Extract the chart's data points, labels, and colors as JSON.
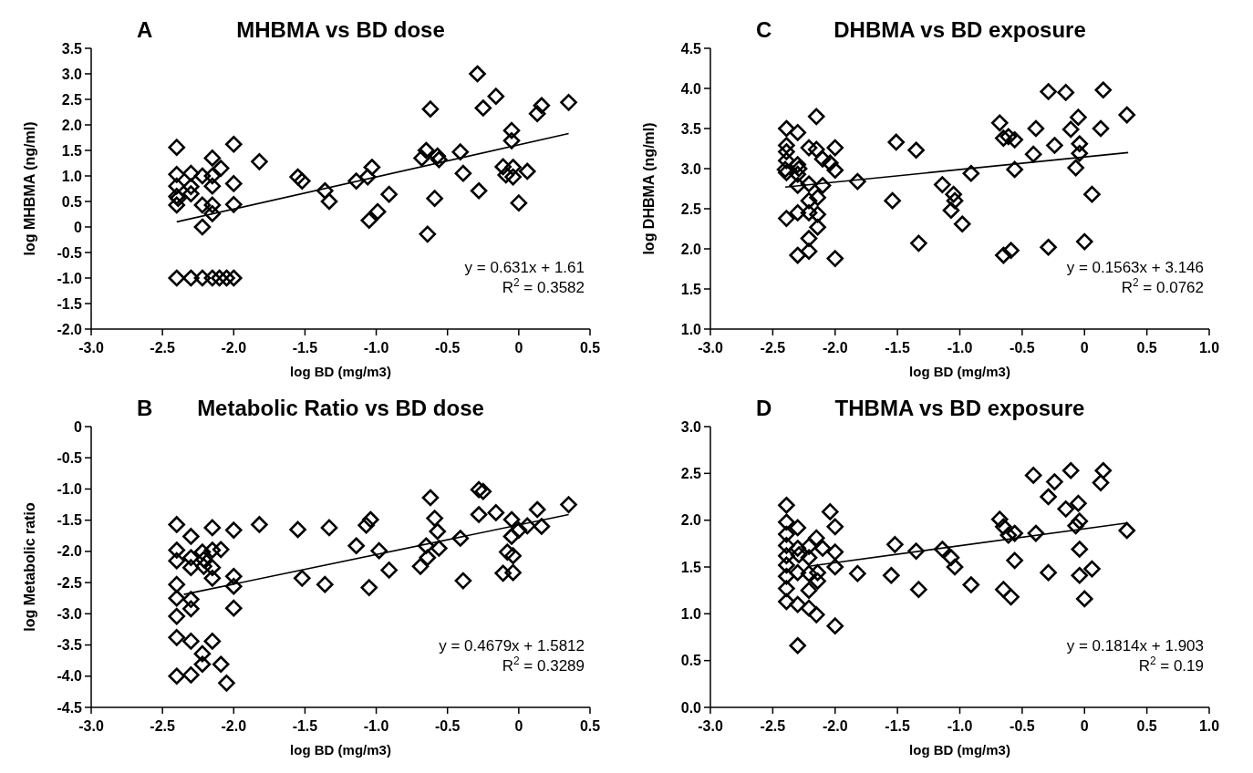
{
  "chart_data": [
    {
      "type": "scatter",
      "title": "MHBMA vs BD dose",
      "xlabel": "log BD (mg/m3)",
      "ylabel": "log MHBMA (ng/ml)",
      "annotations": [
        "A",
        "y = 0.631x + 1.61",
        "R$^{2}$ = 0.3582"
      ],
      "xlim": [
        -3.0,
        0.5
      ],
      "xticks": [
        {
          "value": -3,
          "label": "-3.0"
        },
        {
          "value": -2.5,
          "label": "-2.5"
        },
        {
          "value": -2,
          "label": "-2.0"
        },
        {
          "value": -1.5,
          "label": "-1.5"
        },
        {
          "value": -1,
          "label": "-1.0"
        },
        {
          "value": -0.5,
          "label": "-0.5"
        },
        {
          "value": 0,
          "label": "0"
        },
        {
          "value": 0.5,
          "label": "0.5"
        }
      ],
      "ylim": [
        -2.0,
        3.5
      ],
      "yticks": [
        {
          "value": -2,
          "label": "-2.0"
        },
        {
          "value": -1.5,
          "label": "-1.5"
        },
        {
          "value": -1,
          "label": "-1.0"
        },
        -0.5,
        0,
        0.5,
        {
          "value": 1,
          "label": "1.0"
        },
        1.5,
        {
          "value": 2,
          "label": "2.0"
        },
        2.5,
        {
          "value": 3,
          "label": "3.0"
        },
        3.5
      ],
      "series": [
        {
          "type": "scatter",
          "marker": "diamond",
          "color": "#000000",
          "x": [
            -2.4,
            -2.4,
            -2.4,
            -2.4,
            -2.4,
            -2.39,
            -2.3,
            -2.3,
            -2.3,
            -2.22,
            -2.22,
            -2.22,
            -2.15,
            -2.15,
            -2.15,
            -2.15,
            -2.15,
            -2.09,
            -2.0,
            -2.0,
            -2.0,
            -1.82,
            -1.55,
            -1.52,
            -1.36,
            -1.33,
            -1.14,
            -1.06,
            -1.03,
            -1.05,
            -0.99,
            -0.91,
            -0.68,
            -0.65,
            -0.62,
            -0.64,
            -0.59,
            -0.57,
            -0.56,
            -0.41,
            -0.39,
            -0.29,
            -0.28,
            -0.25,
            -0.16,
            -0.11,
            -0.09,
            -0.05,
            -0.05,
            -0.04,
            -0.04,
            0.0,
            0.06,
            0.13,
            0.16,
            0.35,
            -2.4,
            -2.3,
            -2.22,
            -2.15,
            -2.1,
            -2.05,
            -2.0
          ],
          "values": [
            1.56,
            1.03,
            0.8,
            0.6,
            0.43,
            0.56,
            1.05,
            0.79,
            0.65,
            1.0,
            0.43,
            0.0,
            1.35,
            1.0,
            0.8,
            0.43,
            0.26,
            1.15,
            1.62,
            0.85,
            0.44,
            1.28,
            0.98,
            0.9,
            0.71,
            0.5,
            0.9,
            0.98,
            1.17,
            0.13,
            0.3,
            0.64,
            1.35,
            1.5,
            2.31,
            -0.14,
            0.56,
            1.39,
            1.32,
            1.47,
            1.05,
            3.0,
            0.71,
            2.33,
            2.56,
            1.18,
            1.02,
            1.89,
            1.69,
            1.17,
            0.98,
            0.47,
            1.09,
            2.22,
            2.38,
            2.44,
            -1.0,
            -1.0,
            -1.0,
            -1.0,
            -1.0,
            -1.0,
            -1.0
          ]
        },
        {
          "type": "line",
          "color": "#000000",
          "x": [
            -2.4,
            0.35
          ],
          "values": [
            0.1,
            1.83
          ]
        }
      ]
    },
    {
      "type": "scatter",
      "title": "DHBMA vs BD exposure",
      "xlabel": "log BD (mg/m3)",
      "ylabel": "log DHBMA (ng/ml)",
      "annotations": [
        "C",
        "y = 0.1563x + 3.146",
        "R$^{2}$ = 0.0762"
      ],
      "xlim": [
        -3.0,
        1.0
      ],
      "xticks": [
        {
          "value": -3,
          "label": "-3.0"
        },
        {
          "value": -2.5,
          "label": "-2.5"
        },
        {
          "value": -2,
          "label": "-2.0"
        },
        {
          "value": -1.5,
          "label": "-1.5"
        },
        {
          "value": -1,
          "label": "-1.0"
        },
        {
          "value": -0.5,
          "label": "-0.5"
        },
        {
          "value": 0,
          "label": "0"
        },
        {
          "value": 0.5,
          "label": "0.5"
        },
        {
          "value": 1,
          "label": "1.0"
        }
      ],
      "ylim": [
        1.0,
        4.5
      ],
      "yticks": [
        {
          "value": 1,
          "label": "1.0"
        },
        1.5,
        {
          "value": 2,
          "label": "2.0"
        },
        2.5,
        {
          "value": 3,
          "label": "3.0"
        },
        3.5,
        {
          "value": 4,
          "label": "4.0"
        },
        4.5
      ],
      "series": [
        {
          "type": "scatter",
          "marker": "diamond",
          "color": "#000000",
          "x": [
            -2.39,
            -2.39,
            -2.39,
            -2.39,
            -2.4,
            -2.39,
            -2.39,
            -2.3,
            -2.3,
            -2.29,
            -2.3,
            -2.3,
            -2.3,
            -2.3,
            -2.21,
            -2.21,
            -2.21,
            -2.21,
            -2.21,
            -2.21,
            -2.15,
            -2.15,
            -2.14,
            -2.14,
            -2.14,
            -2.1,
            -2.1,
            -2.04,
            -2.0,
            -2.0,
            -2.0,
            -1.82,
            -1.54,
            -1.51,
            -1.35,
            -1.33,
            -1.14,
            -1.05,
            -1.04,
            -1.07,
            -0.98,
            -0.91,
            -0.68,
            -0.65,
            -0.61,
            -0.65,
            -0.59,
            -0.56,
            -0.56,
            -0.41,
            -0.39,
            -0.29,
            -0.29,
            -0.24,
            -0.15,
            -0.11,
            -0.05,
            -0.04,
            -0.04,
            -0.07,
            0.0,
            0.06,
            0.13,
            0.15,
            0.34
          ],
          "values": [
            3.5,
            3.29,
            3.21,
            3.1,
            2.99,
            2.95,
            2.38,
            3.45,
            3.05,
            3.0,
            2.93,
            2.79,
            2.45,
            1.92,
            3.26,
            2.81,
            2.6,
            2.45,
            2.13,
            1.97,
            3.65,
            3.24,
            2.64,
            2.43,
            2.27,
            3.12,
            2.79,
            3.07,
            3.26,
            2.98,
            1.88,
            2.84,
            2.6,
            3.33,
            3.23,
            2.07,
            2.8,
            2.68,
            2.6,
            2.48,
            2.31,
            2.94,
            3.57,
            3.38,
            3.4,
            1.92,
            1.98,
            3.36,
            2.99,
            3.18,
            3.5,
            2.02,
            3.96,
            3.29,
            3.95,
            3.49,
            3.64,
            3.31,
            3.19,
            3.01,
            2.09,
            2.68,
            3.5,
            3.98,
            3.67
          ]
        },
        {
          "type": "line",
          "color": "#000000",
          "x": [
            -2.4,
            0.35
          ],
          "values": [
            2.77,
            3.2
          ]
        }
      ]
    },
    {
      "type": "scatter",
      "title": "Metabolic Ratio vs BD dose",
      "xlabel": "log BD (mg/m3)",
      "ylabel": "log Metabolic ratio",
      "annotations": [
        "B",
        "y = 0.4679x + 1.5812",
        "R$^{2}$ = 0.3289"
      ],
      "xlim": [
        -3.0,
        0.5
      ],
      "xticks": [
        {
          "value": -3,
          "label": "-3.0"
        },
        {
          "value": -2.5,
          "label": "-2.5"
        },
        {
          "value": -2,
          "label": "-2.0"
        },
        {
          "value": -1.5,
          "label": "-1.5"
        },
        {
          "value": -1,
          "label": "-1.0"
        },
        {
          "value": -0.5,
          "label": "-0.5"
        },
        {
          "value": 0,
          "label": "0"
        },
        {
          "value": 0.5,
          "label": "0.5"
        }
      ],
      "ylim": [
        -4.5,
        0
      ],
      "yticks": [
        -4.5,
        {
          "value": -4,
          "label": "-4.0"
        },
        -3.5,
        {
          "value": -3,
          "label": "-3.0"
        },
        -2.5,
        {
          "value": -2,
          "label": "-2.0"
        },
        -1.5,
        {
          "value": -1,
          "label": "-1.0"
        },
        -0.5,
        0
      ],
      "series": [
        {
          "type": "scatter",
          "marker": "diamond",
          "color": "#000000",
          "x": [
            -2.4,
            -2.4,
            -2.4,
            -2.4,
            -2.4,
            -2.4,
            -2.4,
            -2.4,
            -2.3,
            -2.3,
            -2.3,
            -2.3,
            -2.3,
            -2.3,
            -2.3,
            -2.22,
            -2.21,
            -2.21,
            -2.22,
            -2.22,
            -2.15,
            -2.15,
            -2.15,
            -2.15,
            -2.15,
            -2.09,
            -2.09,
            -2.05,
            -2.0,
            -2.0,
            -2.0,
            -2.0,
            -1.82,
            -1.55,
            -1.52,
            -1.36,
            -1.33,
            -1.14,
            -1.07,
            -1.04,
            -1.05,
            -0.98,
            -0.91,
            -0.69,
            -0.65,
            -0.64,
            -0.62,
            -0.59,
            -0.57,
            -0.56,
            -0.41,
            -0.39,
            -0.28,
            -0.25,
            -0.28,
            -0.16,
            -0.11,
            -0.08,
            -0.05,
            -0.05,
            -0.04,
            -0.04,
            0.0,
            0.06,
            0.13,
            0.16,
            0.35
          ],
          "values": [
            -1.57,
            -1.98,
            -2.15,
            -2.53,
            -2.75,
            -3.04,
            -3.38,
            -4.0,
            -1.76,
            -2.1,
            -2.26,
            -2.77,
            -2.92,
            -3.44,
            -3.98,
            -2.01,
            -2.13,
            -2.24,
            -3.64,
            -3.81,
            -1.62,
            -1.98,
            -2.26,
            -2.43,
            -3.44,
            -1.97,
            -3.81,
            -4.11,
            -1.66,
            -2.4,
            -2.56,
            -2.91,
            -1.57,
            -1.65,
            -2.43,
            -2.53,
            -1.62,
            -1.91,
            -1.58,
            -1.49,
            -2.58,
            -1.99,
            -2.3,
            -2.24,
            -1.91,
            -2.1,
            -1.14,
            -1.47,
            -1.68,
            -1.95,
            -1.79,
            -2.47,
            -1.01,
            -1.04,
            -1.41,
            -1.38,
            -2.35,
            -2.01,
            -1.49,
            -1.76,
            -2.07,
            -2.34,
            -1.66,
            -1.59,
            -1.33,
            -1.6,
            -1.25
          ]
        },
        {
          "type": "line",
          "color": "#000000",
          "x": [
            -2.35,
            0.35
          ],
          "values": [
            -2.69,
            -1.41
          ]
        }
      ]
    },
    {
      "type": "scatter",
      "title": "THBMA vs BD exposure",
      "xlabel": "log BD (mg/m3)",
      "annotations": [
        "D",
        "y = 0.1814x + 1.903",
        "R$^{2}$ = 0.19"
      ],
      "xlim": [
        -3.0,
        1.0
      ],
      "xticks": [
        {
          "value": -3,
          "label": "-3.0"
        },
        {
          "value": -2.5,
          "label": "-2.5"
        },
        {
          "value": -2,
          "label": "-2.0"
        },
        {
          "value": -1.5,
          "label": "-1.5"
        },
        {
          "value": -1,
          "label": "-1.0"
        },
        {
          "value": -0.5,
          "label": "-0.5"
        },
        {
          "value": 0,
          "label": "0"
        },
        {
          "value": 0.5,
          "label": "0.5"
        },
        {
          "value": 1,
          "label": "1.0"
        }
      ],
      "ylim": [
        0,
        3.0
      ],
      "yticks": [
        {
          "value": 0,
          "label": "0.0"
        },
        0.5,
        {
          "value": 1,
          "label": "1.0"
        },
        1.5,
        {
          "value": 2,
          "label": "2.0"
        },
        2.5,
        {
          "value": 3,
          "label": "3.0"
        }
      ],
      "series": [
        {
          "type": "scatter",
          "marker": "diamond",
          "color": "#000000",
          "x": [
            -2.39,
            -2.39,
            -2.39,
            -2.39,
            -2.39,
            -2.39,
            -2.39,
            -2.39,
            -2.39,
            -2.3,
            -2.3,
            -2.29,
            -2.3,
            -2.3,
            -2.3,
            -2.21,
            -2.21,
            -2.21,
            -2.21,
            -2.21,
            -2.15,
            -2.14,
            -2.14,
            -2.15,
            -2.1,
            -2.04,
            -2.0,
            -2.0,
            -2.0,
            -2.0,
            -1.82,
            -1.55,
            -1.52,
            -1.35,
            -1.33,
            -1.14,
            -1.07,
            -1.04,
            -0.91,
            -0.68,
            -0.65,
            -0.61,
            -0.56,
            -0.65,
            -0.59,
            -0.56,
            -0.41,
            -0.39,
            -0.29,
            -0.29,
            -0.24,
            -0.15,
            -0.11,
            -0.05,
            -0.04,
            -0.07,
            -0.04,
            -0.04,
            0.0,
            0.06,
            0.13,
            0.15,
            0.34
          ],
          "values": [
            2.16,
            1.98,
            1.85,
            1.73,
            1.62,
            1.52,
            1.4,
            1.27,
            1.13,
            1.92,
            1.7,
            1.63,
            1.44,
            1.1,
            0.66,
            1.72,
            1.6,
            1.43,
            1.25,
            1.06,
            1.81,
            1.44,
            1.35,
            0.99,
            1.7,
            2.09,
            1.93,
            1.66,
            1.5,
            0.87,
            1.43,
            1.41,
            1.74,
            1.67,
            1.26,
            1.69,
            1.6,
            1.5,
            1.31,
            2.01,
            1.93,
            1.84,
            1.86,
            1.26,
            1.18,
            1.57,
            2.48,
            1.86,
            2.25,
            1.44,
            2.41,
            2.12,
            2.53,
            2.18,
            1.99,
            1.94,
            1.69,
            1.41,
            1.16,
            1.48,
            2.4,
            2.53,
            1.89
          ]
        },
        {
          "type": "line",
          "color": "#000000",
          "x": [
            -2.2,
            0.34
          ],
          "values": [
            1.51,
            1.97
          ]
        }
      ]
    }
  ]
}
